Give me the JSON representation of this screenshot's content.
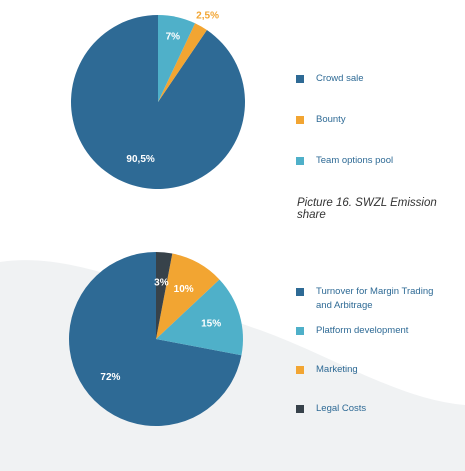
{
  "colors": {
    "background_wave": "#f0f2f3",
    "label_light": "#ffffff",
    "label_outside": "#f2a532"
  },
  "caption": "Picture 16. SWZL Emission share",
  "chart_data": [
    {
      "type": "pie",
      "series": [
        {
          "name": "Crowd sale",
          "value": 90.5,
          "label": "90,5%",
          "color": "#2e6a95",
          "label_position": "inside"
        },
        {
          "name": "Bounty",
          "value": 2.5,
          "label": "2,5%",
          "color": "#f2a532",
          "label_position": "outside"
        },
        {
          "name": "Team options pool",
          "value": 7,
          "label": "7%",
          "color": "#4fb0c9",
          "label_position": "inside"
        }
      ]
    },
    {
      "type": "pie",
      "series": [
        {
          "name": "Turnover for Margin Trading and Arbitrage",
          "value": 72,
          "label": "72%",
          "color": "#2e6a95",
          "label_position": "inside"
        },
        {
          "name": "Platform development",
          "value": 15,
          "label": "15%",
          "color": "#4fb0c9",
          "label_position": "inside"
        },
        {
          "name": "Marketing",
          "value": 10,
          "label": "10%",
          "color": "#f2a532",
          "label_position": "inside"
        },
        {
          "name": "Legal Costs",
          "value": 3,
          "label": "3%",
          "color": "#37424a",
          "label_position": "inside"
        }
      ]
    }
  ]
}
